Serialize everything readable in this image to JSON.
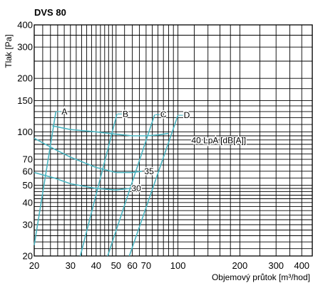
{
  "chart_data": {
    "type": "line",
    "title": "DVS 80",
    "xlabel": "Objemový průtok [m³/hod]",
    "ylabel": "Tlak [Pa]",
    "xscale": "log",
    "yscale": "log",
    "xlim": [
      20,
      450
    ],
    "ylim": [
      20,
      400
    ],
    "grid": true,
    "xticks": [
      20,
      30,
      40,
      50,
      60,
      70,
      100,
      200,
      300,
      400
    ],
    "yticks": [
      20,
      30,
      40,
      50,
      60,
      70,
      100,
      150,
      200,
      300,
      400
    ],
    "xgrid": [
      20,
      22,
      24,
      26,
      28,
      30,
      32,
      34,
      36,
      38,
      40,
      42,
      44,
      46,
      48,
      50,
      55,
      60,
      65,
      70,
      75,
      80,
      85,
      90,
      95,
      100,
      120,
      140,
      160,
      180,
      200,
      250,
      300,
      350,
      400,
      450
    ],
    "ygrid": [
      20,
      22,
      24,
      26,
      28,
      30,
      32,
      34,
      36,
      38,
      40,
      42,
      44,
      46,
      48,
      50,
      55,
      60,
      65,
      70,
      75,
      80,
      85,
      90,
      95,
      100,
      110,
      120,
      130,
      140,
      150,
      175,
      200,
      250,
      300,
      350,
      400
    ],
    "series": [
      {
        "name": "A",
        "label": "A",
        "x": [
          20,
          25.5
        ],
        "y": [
          23,
          130
        ]
      },
      {
        "name": "B",
        "label": "B",
        "x": [
          33.5,
          50.5
        ],
        "y": [
          20,
          126
        ]
      },
      {
        "name": "C",
        "label": "C",
        "x": [
          45.5,
          77
        ],
        "y": [
          20,
          125
        ]
      },
      {
        "name": "D",
        "label": "D",
        "x": [
          58,
          100
        ],
        "y": [
          20,
          124
        ]
      }
    ],
    "noise_curves": [
      {
        "name": "40 LpA [dB[A]]",
        "label": "40 LpA [dB[A]]",
        "x": [
          24.5,
          30,
          40,
          50,
          60,
          70,
          80,
          90
        ],
        "y": [
          108,
          103,
          100,
          97,
          95,
          95,
          96,
          98
        ]
      },
      {
        "name": "35",
        "label": "35",
        "x": [
          20,
          25,
          30,
          40,
          50,
          60,
          67
        ],
        "y": [
          92,
          80,
          72,
          63,
          59,
          59,
          60
        ]
      },
      {
        "name": "30",
        "label": "30",
        "x": [
          20,
          25,
          30,
          40,
          50,
          58
        ],
        "y": [
          59,
          55,
          51,
          48,
          47,
          48
        ]
      }
    ],
    "line_color": "#4bb5c1"
  }
}
